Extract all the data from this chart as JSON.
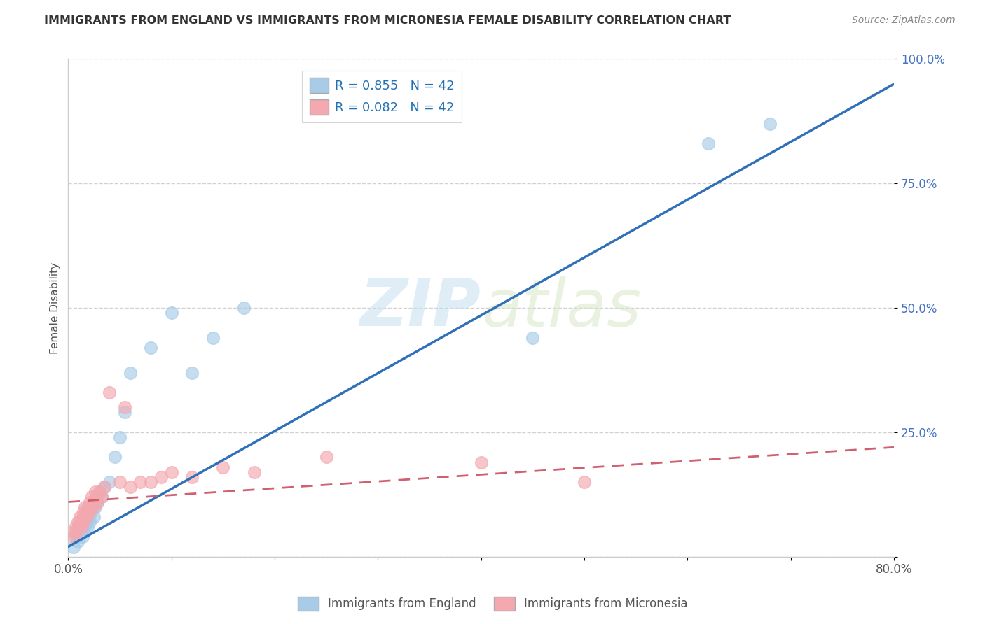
{
  "title": "IMMIGRANTS FROM ENGLAND VS IMMIGRANTS FROM MICRONESIA FEMALE DISABILITY CORRELATION CHART",
  "source": "Source: ZipAtlas.com",
  "ylabel": "Female Disability",
  "xlabel": "",
  "xlim": [
    0.0,
    0.8
  ],
  "ylim": [
    0.0,
    1.0
  ],
  "england_R": 0.855,
  "micronesia_R": 0.082,
  "N": 42,
  "england_color": "#a8cce8",
  "micronesia_color": "#f4a8b0",
  "england_line_color": "#3070b8",
  "micronesia_line_color": "#d06070",
  "legend_color": "#2171b5",
  "england_scatter_x": [
    0.005,
    0.007,
    0.008,
    0.009,
    0.01,
    0.01,
    0.012,
    0.012,
    0.013,
    0.014,
    0.015,
    0.015,
    0.016,
    0.017,
    0.018,
    0.018,
    0.019,
    0.02,
    0.02,
    0.021,
    0.022,
    0.023,
    0.025,
    0.026,
    0.027,
    0.028,
    0.03,
    0.032,
    0.035,
    0.04,
    0.045,
    0.05,
    0.055,
    0.06,
    0.08,
    0.1,
    0.12,
    0.14,
    0.17,
    0.45,
    0.62,
    0.68
  ],
  "england_scatter_y": [
    0.02,
    0.04,
    0.05,
    0.03,
    0.06,
    0.04,
    0.05,
    0.07,
    0.06,
    0.04,
    0.05,
    0.07,
    0.06,
    0.08,
    0.07,
    0.09,
    0.06,
    0.08,
    0.1,
    0.07,
    0.09,
    0.1,
    0.08,
    0.1,
    0.12,
    0.11,
    0.13,
    0.12,
    0.14,
    0.15,
    0.2,
    0.24,
    0.29,
    0.37,
    0.42,
    0.49,
    0.37,
    0.44,
    0.5,
    0.44,
    0.83,
    0.87
  ],
  "micronesia_scatter_x": [
    0.005,
    0.006,
    0.007,
    0.008,
    0.009,
    0.01,
    0.011,
    0.012,
    0.013,
    0.014,
    0.015,
    0.015,
    0.016,
    0.017,
    0.018,
    0.019,
    0.02,
    0.021,
    0.022,
    0.023,
    0.024,
    0.025,
    0.026,
    0.027,
    0.028,
    0.03,
    0.032,
    0.035,
    0.04,
    0.05,
    0.055,
    0.06,
    0.07,
    0.08,
    0.09,
    0.1,
    0.12,
    0.15,
    0.18,
    0.25,
    0.4,
    0.5
  ],
  "micronesia_scatter_y": [
    0.04,
    0.05,
    0.06,
    0.05,
    0.07,
    0.06,
    0.08,
    0.07,
    0.06,
    0.08,
    0.09,
    0.07,
    0.1,
    0.09,
    0.08,
    0.1,
    0.09,
    0.11,
    0.1,
    0.12,
    0.11,
    0.1,
    0.13,
    0.12,
    0.11,
    0.13,
    0.12,
    0.14,
    0.33,
    0.15,
    0.3,
    0.14,
    0.15,
    0.15,
    0.16,
    0.17,
    0.16,
    0.18,
    0.17,
    0.2,
    0.19,
    0.15
  ],
  "background_color": "#ffffff",
  "grid_color": "#cccccc",
  "eng_line_x": [
    0.0,
    0.8
  ],
  "eng_line_y": [
    0.02,
    0.95
  ],
  "mic_line_x": [
    0.0,
    0.8
  ],
  "mic_line_y": [
    0.11,
    0.22
  ]
}
